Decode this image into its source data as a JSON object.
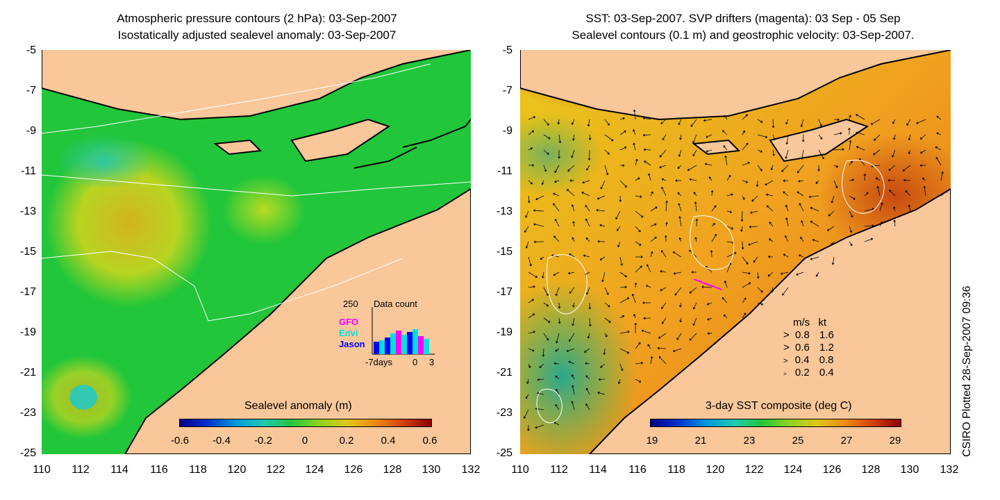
{
  "left_panel": {
    "title_line1": "Atmospheric pressure contours (2 hPa): 03-Sep-2007",
    "title_line2": "Isostatically adjusted sealevel anomaly: 03-Sep-2007",
    "colorbar": {
      "title": "Sealevel anomaly (m)",
      "ticks": [
        "-0.6",
        "-0.4",
        "-0.2",
        "0",
        "0.2",
        "0.4",
        "0.6"
      ],
      "range": [
        -0.6,
        0.6
      ]
    },
    "data_count_inset": {
      "title": "Data count",
      "max_label": "250",
      "legend": [
        {
          "label": "GFO",
          "color": "#ff00ff"
        },
        {
          "label": "Envi",
          "color": "#00e0e0"
        },
        {
          "label": "Jason",
          "color": "#0000ff"
        }
      ],
      "x_labels": [
        "-7days",
        "0",
        "3"
      ]
    }
  },
  "right_panel": {
    "title_line1": "SST: 03-Sep-2007. SVP drifters (magenta): 03 Sep - 05 Sep",
    "title_line2": "Sealevel contours (0.1 m) and geostrophic velocity: 03-Sep-2007.",
    "colorbar": {
      "title": "3-day SST composite (deg C)",
      "ticks": [
        "19",
        "21",
        "23",
        "25",
        "27",
        "29"
      ],
      "range": [
        19,
        29
      ]
    },
    "velocity_legend": {
      "header_ms": "m/s",
      "header_kt": "kt",
      "rows": [
        {
          "ms": "0.8",
          "kt": "1.6"
        },
        {
          "ms": "0.6",
          "kt": "1.2"
        },
        {
          "ms": "0.4",
          "kt": "0.8"
        },
        {
          "ms": "0.2",
          "kt": "0.4"
        }
      ]
    }
  },
  "axes": {
    "lat_ticks": [
      "-5",
      "-7",
      "-9",
      "-11",
      "-13",
      "-15",
      "-17",
      "-19",
      "-21",
      "-23",
      "-25"
    ],
    "lon_ticks": [
      "110",
      "112",
      "114",
      "116",
      "118",
      "120",
      "122",
      "124",
      "126",
      "128",
      "130",
      "132"
    ],
    "lon_range": [
      110,
      132
    ],
    "lat_range": [
      -25,
      -5
    ]
  },
  "credit": "CSIRO Plotted 28-Sep-2007 09:36",
  "colors": {
    "land": "#f9c79a",
    "ocean_green": "#22c63a",
    "sst_orange": "#f0a020",
    "coast": "#000000"
  }
}
